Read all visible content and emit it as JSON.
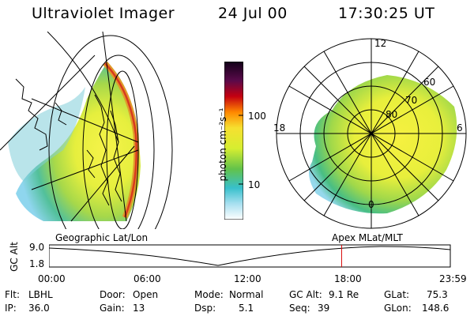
{
  "header": {
    "title": "Ultraviolet Imager",
    "date": "24 Jul 00",
    "time": "17:30:25 UT"
  },
  "colorbar": {
    "unit": "photon cm⁻²s⁻¹",
    "ticks": [
      "100",
      "10"
    ]
  },
  "polar_plot": {
    "lat_labels": [
      "80",
      "70",
      "60"
    ],
    "mlt_labels": [
      "12",
      "18",
      "6",
      "0"
    ]
  },
  "timeline": {
    "left_title": "Geographic Lat/Lon",
    "right_title": "Apex MLat/MLT",
    "axis_label": "GC Alt",
    "y_ticks": [
      "9.0",
      "1.8"
    ],
    "x_ticks": [
      "00:00",
      "06:00",
      "12:00",
      "18:00",
      "23:59"
    ],
    "marker_time": "17:30",
    "marker_color": "#d80000"
  },
  "params": {
    "filter_label": "Flt:",
    "filter_value": "LBHL",
    "ip_label": "IP:",
    "ip_value": "36.0",
    "door_label": "Door:",
    "door_value": "Open",
    "gain_label": "Gain:",
    "gain_value": "13",
    "mode_label": "Mode:",
    "mode_value": "Normal",
    "dsp_label": "Dsp:",
    "dsp_value": "5.1",
    "gcalt_label": "GC Alt:",
    "gcalt_value": "9.1 Re",
    "seq_label": "Seq:",
    "seq_value": "39",
    "glat_label": "GLat:",
    "glat_value": "75.3",
    "glon_label": "GLon:",
    "glon_value": "148.6"
  }
}
